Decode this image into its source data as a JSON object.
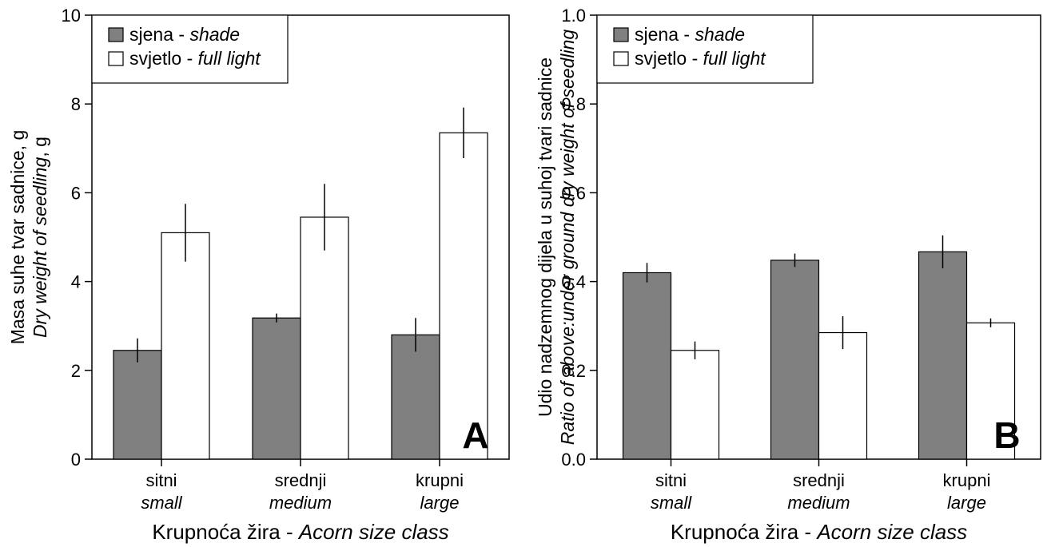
{
  "chart_data": [
    {
      "type": "bar",
      "panel_label": "A",
      "categories": [
        {
          "primary": "sitni",
          "secondary": "small"
        },
        {
          "primary": "srednji",
          "secondary": "medium"
        },
        {
          "primary": "krupni",
          "secondary": "large"
        }
      ],
      "series": [
        {
          "name": "sjena",
          "name_en": "shade",
          "color": "#808080",
          "values": [
            2.45,
            3.18,
            2.8
          ],
          "errors": [
            0.27,
            0.1,
            0.38
          ]
        },
        {
          "name": "svjetlo",
          "name_en": "full light",
          "color": "#ffffff",
          "values": [
            5.1,
            5.45,
            7.35
          ],
          "errors": [
            0.65,
            0.75,
            0.57
          ]
        }
      ],
      "ylim": [
        0,
        10
      ],
      "yticks": [
        "0",
        "2",
        "4",
        "6",
        "8",
        "10"
      ],
      "xlabel": {
        "main": "Krupnoća žira - ",
        "italic": "Acorn size class"
      },
      "ylabel": {
        "line1": "Masa suhe tvar sadnice, g",
        "line2_italic": "Dry weight of seedling",
        "line2_plain": ", g"
      },
      "legend_position": "top-left"
    },
    {
      "type": "bar",
      "panel_label": "B",
      "categories": [
        {
          "primary": "sitni",
          "secondary": "small"
        },
        {
          "primary": "srednji",
          "secondary": "medium"
        },
        {
          "primary": "krupni",
          "secondary": "large"
        }
      ],
      "series": [
        {
          "name": "sjena",
          "name_en": "shade",
          "color": "#808080",
          "values": [
            0.42,
            0.448,
            0.467
          ],
          "errors": [
            0.022,
            0.015,
            0.037
          ]
        },
        {
          "name": "svjetlo",
          "name_en": "full light",
          "color": "#ffffff",
          "values": [
            0.245,
            0.285,
            0.307
          ],
          "errors": [
            0.02,
            0.037,
            0.01
          ]
        }
      ],
      "ylim": [
        0,
        1.0
      ],
      "yticks": [
        "0.0",
        "0.2",
        "0.4",
        "0.6",
        "0.8",
        "1.0"
      ],
      "xlabel": {
        "main": "Krupnoća žira - ",
        "italic": "Acorn size class"
      },
      "ylabel": {
        "line1": "Udio nadzemnog dijela u suhoj tvari sadnice",
        "line2_italic": "Ratio of above:under ground dry weight of seedling",
        "line2_plain": ""
      },
      "legend_position": "top-left"
    }
  ]
}
